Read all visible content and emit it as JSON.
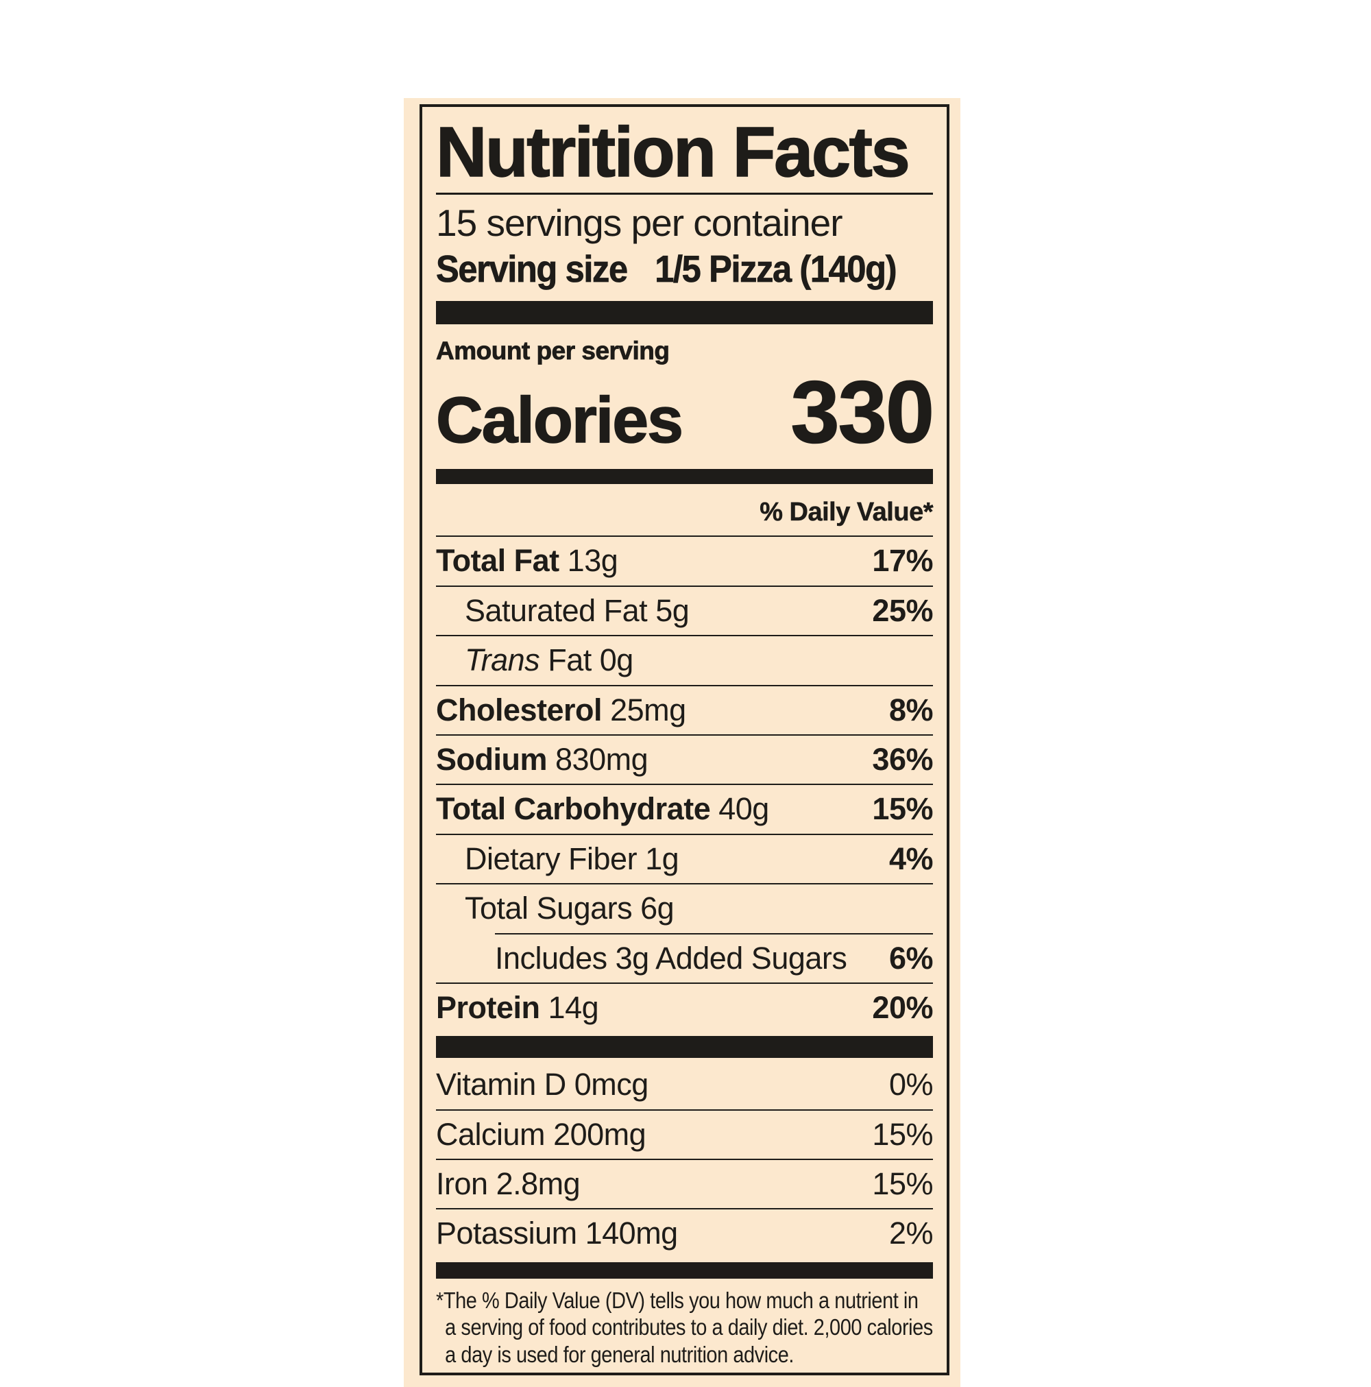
{
  "label": {
    "title": "Nutrition Facts",
    "servings_per_container": "15 servings per container",
    "serving_size_label": "Serving size",
    "serving_size_value": "1/5 Pizza (140g)",
    "amount_per_serving": "Amount per serving",
    "calories_label": "Calories",
    "calories_value": "330",
    "daily_value_header": "% Daily Value*",
    "nutrients": [
      {
        "name": "Total Fat",
        "amount": "13g",
        "dv": "17%"
      },
      {
        "name": "Saturated Fat",
        "amount": "5g",
        "dv": "25%"
      },
      {
        "name_italic": "Trans",
        "name": "Fat",
        "amount": "0g",
        "dv": ""
      },
      {
        "name": "Cholesterol",
        "amount": "25mg",
        "dv": "8%"
      },
      {
        "name": "Sodium",
        "amount": "830mg",
        "dv": "36%"
      },
      {
        "name": "Total Carbohydrate",
        "amount": "40g",
        "dv": "15%"
      },
      {
        "name": "Dietary Fiber",
        "amount": "1g",
        "dv": "4%"
      },
      {
        "name": "Total Sugars",
        "amount": "6g",
        "dv": ""
      },
      {
        "name": "Includes 3g Added Sugars",
        "amount": "",
        "dv": "6%"
      },
      {
        "name": "Protein",
        "amount": "14g",
        "dv": "20%"
      }
    ],
    "vitamins": [
      {
        "name": "Vitamin D",
        "amount": "0mcg",
        "dv": "0%"
      },
      {
        "name": "Calcium",
        "amount": "200mg",
        "dv": "15%"
      },
      {
        "name": "Iron",
        "amount": "2.8mg",
        "dv": "15%"
      },
      {
        "name": "Potassium",
        "amount": "140mg",
        "dv": "2%"
      }
    ],
    "footnote": "*The % Daily Value (DV) tells you how much a nutrient in a serving of food contributes to a daily diet. 2,000 calories a day is used for general nutrition advice.",
    "colors": {
      "background": "#fce8ce",
      "ink": "#1e1c19",
      "page": "#ffffff"
    }
  }
}
